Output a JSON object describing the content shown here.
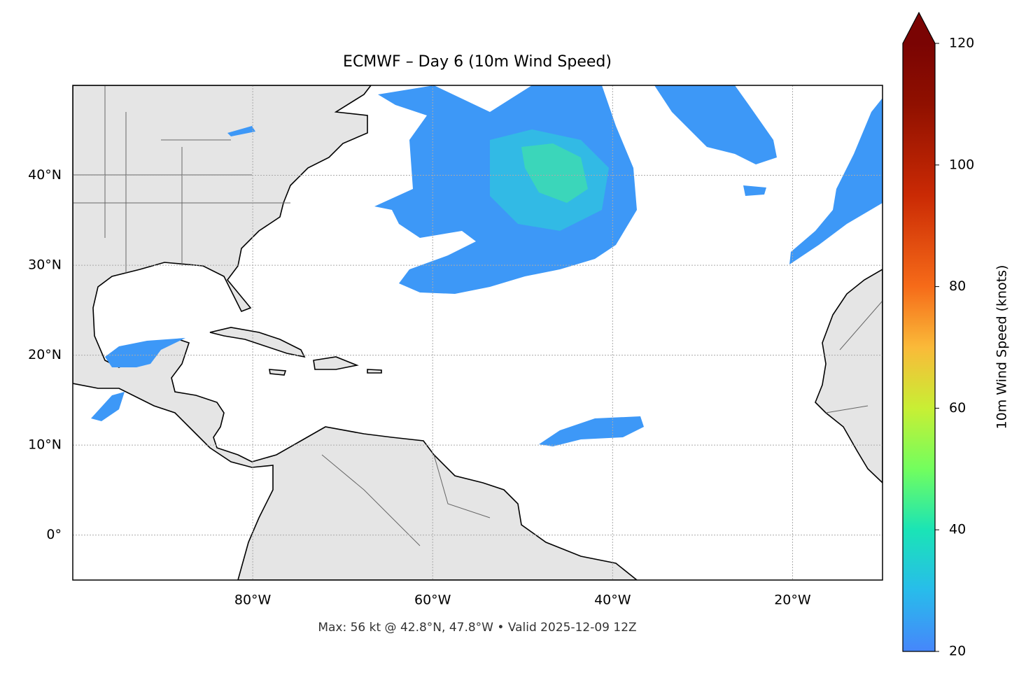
{
  "chart_data": {
    "type": "map",
    "title": "ECMWF – Day 6 (10m Wind Speed)",
    "xlim": [
      -100,
      -10
    ],
    "ylim": [
      -5,
      50
    ],
    "xticks": [
      {
        "value": -80,
        "label": "80°W"
      },
      {
        "value": -60,
        "label": "60°W"
      },
      {
        "value": -40,
        "label": "40°W"
      },
      {
        "value": -20,
        "label": "20°W"
      }
    ],
    "yticks": [
      {
        "value": 0,
        "label": "0°"
      },
      {
        "value": 10,
        "label": "10°N"
      },
      {
        "value": 20,
        "label": "20°N"
      },
      {
        "value": 30,
        "label": "30°N"
      },
      {
        "value": 40,
        "label": "40°N"
      }
    ],
    "grid": true,
    "colorbar": {
      "label": "10m Wind Speed (knots)",
      "lim": [
        20,
        120
      ],
      "ticks": [
        20,
        40,
        60,
        80,
        100,
        120
      ],
      "extend": "max"
    },
    "footnote": "Max: 56 kt @ 42.8°N, 47.8°W • Valid 2025-12-09 12Z"
  }
}
